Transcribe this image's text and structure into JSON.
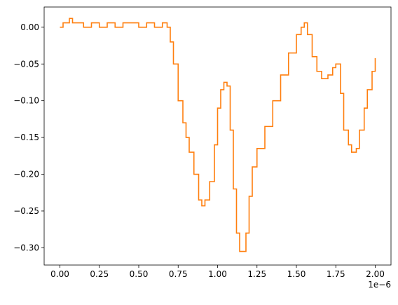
{
  "chart_data": {
    "type": "line",
    "title": "",
    "xlabel": "",
    "ylabel": "",
    "x_offset_label": "1e−6",
    "xlim": [
      -1e-07,
      2.1e-06
    ],
    "ylim": [
      -0.3235,
      0.0275
    ],
    "x_ticks": [
      {
        "value": 0.0,
        "label": "0.00"
      },
      {
        "value": 2.5e-07,
        "label": "0.25"
      },
      {
        "value": 5e-07,
        "label": "0.50"
      },
      {
        "value": 7.5e-07,
        "label": "0.75"
      },
      {
        "value": 1e-06,
        "label": "1.00"
      },
      {
        "value": 1.25e-06,
        "label": "1.25"
      },
      {
        "value": 1.5e-06,
        "label": "1.50"
      },
      {
        "value": 1.75e-06,
        "label": "1.75"
      },
      {
        "value": 2e-06,
        "label": "2.00"
      }
    ],
    "y_ticks": [
      {
        "value": 0.0,
        "label": "0.00"
      },
      {
        "value": -0.05,
        "label": "−0.05"
      },
      {
        "value": -0.1,
        "label": "−0.10"
      },
      {
        "value": -0.15,
        "label": "−0.15"
      },
      {
        "value": -0.2,
        "label": "−0.20"
      },
      {
        "value": -0.25,
        "label": "−0.25"
      },
      {
        "value": -0.3,
        "label": "−0.30"
      }
    ],
    "grid": false,
    "legend": false,
    "series": [
      {
        "color": "#ff7f0e",
        "step": true,
        "x": [
          0.0,
          2e-08,
          4e-08,
          6e-08,
          8e-08,
          1e-07,
          1.5e-07,
          2e-07,
          2.5e-07,
          3e-07,
          3.5e-07,
          4e-07,
          4.5e-07,
          5e-07,
          5.5e-07,
          6e-07,
          6.5e-07,
          6.8e-07,
          7e-07,
          7.2e-07,
          7.5e-07,
          7.8e-07,
          8e-07,
          8.2e-07,
          8.5e-07,
          8.8e-07,
          9e-07,
          9.2e-07,
          9.5e-07,
          9.8e-07,
          1e-06,
          1.02e-06,
          1.04e-06,
          1.06e-06,
          1.08e-06,
          1.1e-06,
          1.12e-06,
          1.14e-06,
          1.16e-06,
          1.18e-06,
          1.2e-06,
          1.22e-06,
          1.25e-06,
          1.3e-06,
          1.35e-06,
          1.4e-06,
          1.45e-06,
          1.5e-06,
          1.53e-06,
          1.55e-06,
          1.57e-06,
          1.6e-06,
          1.63e-06,
          1.66e-06,
          1.7e-06,
          1.73e-06,
          1.75e-06,
          1.78e-06,
          1.8e-06,
          1.83e-06,
          1.85e-06,
          1.88e-06,
          1.9e-06,
          1.93e-06,
          1.95e-06,
          1.98e-06,
          2e-06
        ],
        "y": [
          0.0,
          0.006,
          0.006,
          0.012,
          0.006,
          0.006,
          0.0,
          0.006,
          0.0,
          0.006,
          0.0,
          0.006,
          0.006,
          0.0,
          0.006,
          0.0,
          0.006,
          0.0,
          -0.02,
          -0.05,
          -0.1,
          -0.13,
          -0.15,
          -0.17,
          -0.2,
          -0.235,
          -0.243,
          -0.235,
          -0.21,
          -0.16,
          -0.11,
          -0.085,
          -0.075,
          -0.08,
          -0.14,
          -0.22,
          -0.28,
          -0.305,
          -0.305,
          -0.28,
          -0.23,
          -0.19,
          -0.165,
          -0.135,
          -0.1,
          -0.065,
          -0.035,
          -0.01,
          0.0,
          0.006,
          -0.01,
          -0.04,
          -0.06,
          -0.07,
          -0.065,
          -0.055,
          -0.05,
          -0.09,
          -0.14,
          -0.16,
          -0.17,
          -0.165,
          -0.14,
          -0.11,
          -0.085,
          -0.06,
          -0.042
        ]
      }
    ]
  }
}
